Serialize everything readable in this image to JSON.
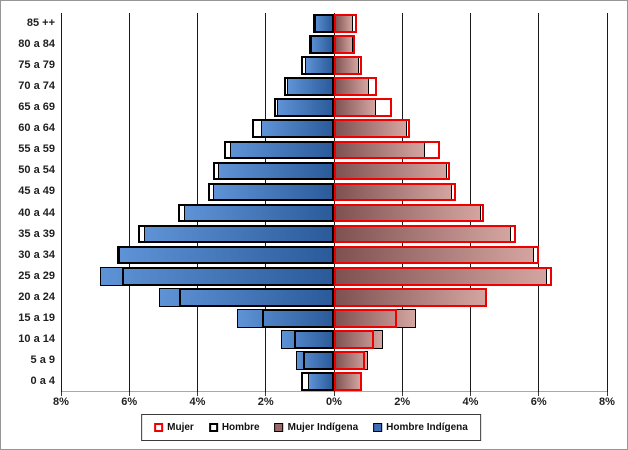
{
  "chart_data": {
    "type": "bar",
    "subtype": "population-pyramid",
    "title": "",
    "xlabel": "",
    "ylabel": "",
    "grid": true,
    "legend_position": "bottom",
    "categories": [
      "85 ++",
      "80 a 84",
      "75 a 79",
      "70 a 74",
      "65 a 69",
      "60 a 64",
      "55 a 59",
      "50 a 54",
      "45 a 49",
      "40 a 44",
      "35 a 39",
      "30 a 34",
      "25 a 29",
      "20 a 24",
      "15 a 19",
      "10 a 14",
      "5 a 9",
      "0 a 4"
    ],
    "x_axis": {
      "unit": "%",
      "tick_labels": [
        "8%",
        "6%",
        "4%",
        "2%",
        "0%",
        "2%",
        "4%",
        "6%",
        "8%"
      ],
      "tick_positions": [
        -8,
        -6,
        -4,
        -2,
        0,
        2,
        4,
        6,
        8
      ],
      "xlim_per_side": [
        0,
        8
      ]
    },
    "series": [
      {
        "name": "Mujer",
        "side": "right",
        "style": "outline",
        "outline_color": "#ee0000",
        "values_pct": [
          0.66,
          0.62,
          0.81,
          1.25,
          1.7,
          2.22,
          3.1,
          3.41,
          3.58,
          4.39,
          5.32,
          6.02,
          6.39,
          4.48,
          1.86,
          1.17,
          0.9,
          0.82
        ]
      },
      {
        "name": "Hombre",
        "side": "left",
        "style": "outline",
        "outline_color": "#000000",
        "values_pct": [
          0.6,
          0.7,
          0.96,
          1.46,
          1.77,
          2.4,
          3.23,
          3.55,
          3.68,
          4.57,
          5.74,
          6.35,
          6.2,
          4.53,
          2.11,
          1.18,
          0.91,
          0.96
        ]
      },
      {
        "name": "Mujer Indígena",
        "side": "right",
        "style": "fill",
        "fill_gradient_axis_to_tip": [
          "#7e5050",
          "#d4a5a0"
        ],
        "outline_color": "#000000",
        "values_pct": [
          0.56,
          0.55,
          0.74,
          1.02,
          1.22,
          2.15,
          2.66,
          3.32,
          3.47,
          4.3,
          5.19,
          5.87,
          6.24,
          4.45,
          2.41,
          1.44,
          1.01,
          0.79
        ]
      },
      {
        "name": "Hombre Indígena",
        "side": "left",
        "style": "fill",
        "fill_gradient_axis_to_tip": [
          "#2a5a9a",
          "#5e93d6"
        ],
        "outline_color": "#000000",
        "values_pct": [
          0.63,
          0.74,
          0.84,
          1.38,
          1.67,
          2.14,
          3.05,
          3.39,
          3.55,
          4.39,
          5.56,
          6.3,
          6.85,
          5.12,
          2.83,
          1.55,
          1.11,
          0.77
        ]
      }
    ]
  },
  "legend": {
    "items": [
      {
        "label": "Mujer",
        "swatch_fill": "#ffffff",
        "swatch_border": "#ee0000"
      },
      {
        "label": "Hombre",
        "swatch_fill": "#ffffff",
        "swatch_border": "#000000"
      },
      {
        "label": "Mujer Indígena",
        "swatch_fill": "#9a6868",
        "swatch_border": "#000000"
      },
      {
        "label": "Hombre Indígena",
        "swatch_fill": "#3e6fb5",
        "swatch_border": "#000000"
      }
    ]
  }
}
